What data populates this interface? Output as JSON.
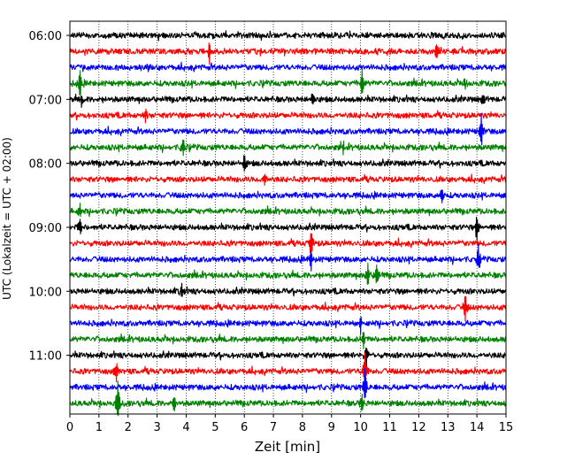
{
  "chart_data": {
    "type": "line",
    "title": "",
    "xlabel": "Zeit  [min]",
    "ylabel": "UTC (Lokalzeit = UTC + 02:00)",
    "xlim": [
      0,
      15
    ],
    "x_ticks": [
      "0",
      "1",
      "2",
      "3",
      "4",
      "5",
      "6",
      "7",
      "8",
      "9",
      "10",
      "11",
      "12",
      "13",
      "14",
      "15"
    ],
    "y_tick_labels": [
      "06:00",
      "07:00",
      "08:00",
      "09:00",
      "10:00",
      "11:00"
    ],
    "y_tick_traces": [
      0,
      4,
      8,
      12,
      16,
      20
    ],
    "trace_interval_min": 15,
    "trace_count": 24,
    "first_trace_start": "06:00",
    "last_trace_start": "11:45",
    "trace_colors": [
      "#000000",
      "#ff0000",
      "#0000ff",
      "#008000"
    ],
    "grid": "vertical dotted at each minute",
    "events": [
      {
        "trace": 1,
        "minute": 4.8,
        "amplitude": 1.3
      },
      {
        "trace": 1,
        "minute": 12.6,
        "amplitude": 0.9
      },
      {
        "trace": 3,
        "minute": 0.35,
        "amplitude": 1.6
      },
      {
        "trace": 3,
        "minute": 10.05,
        "amplitude": 1.3
      },
      {
        "trace": 3,
        "minute": 13.6,
        "amplitude": 0.7
      },
      {
        "trace": 4,
        "minute": 0.4,
        "amplitude": 0.8
      },
      {
        "trace": 4,
        "minute": 8.35,
        "amplitude": 0.6
      },
      {
        "trace": 4,
        "minute": 14.2,
        "amplitude": 0.6
      },
      {
        "trace": 5,
        "minute": 2.6,
        "amplitude": 0.6
      },
      {
        "trace": 6,
        "minute": 14.15,
        "amplitude": 1.6
      },
      {
        "trace": 7,
        "minute": 3.9,
        "amplitude": 0.9
      },
      {
        "trace": 7,
        "minute": 9.4,
        "amplitude": 0.5
      },
      {
        "trace": 8,
        "minute": 6.0,
        "amplitude": 0.9
      },
      {
        "trace": 9,
        "minute": 6.7,
        "amplitude": 0.7
      },
      {
        "trace": 10,
        "minute": 12.8,
        "amplitude": 0.8
      },
      {
        "trace": 11,
        "minute": 0.35,
        "amplitude": 0.7
      },
      {
        "trace": 12,
        "minute": 0.35,
        "amplitude": 0.8
      },
      {
        "trace": 12,
        "minute": 14.0,
        "amplitude": 1.5
      },
      {
        "trace": 13,
        "minute": 8.3,
        "amplitude": 1.7
      },
      {
        "trace": 14,
        "minute": 8.3,
        "amplitude": 1.0
      },
      {
        "trace": 14,
        "minute": 14.05,
        "amplitude": 1.2
      },
      {
        "trace": 15,
        "minute": 10.25,
        "amplitude": 1.2
      },
      {
        "trace": 15,
        "minute": 10.55,
        "amplitude": 1.1
      },
      {
        "trace": 16,
        "minute": 3.85,
        "amplitude": 0.8
      },
      {
        "trace": 17,
        "minute": 13.6,
        "amplitude": 1.3
      },
      {
        "trace": 18,
        "minute": 10.0,
        "amplitude": 1.0
      },
      {
        "trace": 19,
        "minute": 10.1,
        "amplitude": 1.0
      },
      {
        "trace": 20,
        "minute": 10.2,
        "amplitude": 1.2
      },
      {
        "trace": 21,
        "minute": 1.6,
        "amplitude": 0.8
      },
      {
        "trace": 21,
        "minute": 10.15,
        "amplitude": 1.9
      },
      {
        "trace": 22,
        "minute": 10.15,
        "amplitude": 1.7
      },
      {
        "trace": 23,
        "minute": 1.65,
        "amplitude": 2.1
      },
      {
        "trace": 23,
        "minute": 10.05,
        "amplitude": 0.8
      },
      {
        "trace": 23,
        "minute": 3.6,
        "amplitude": 0.7
      }
    ]
  }
}
